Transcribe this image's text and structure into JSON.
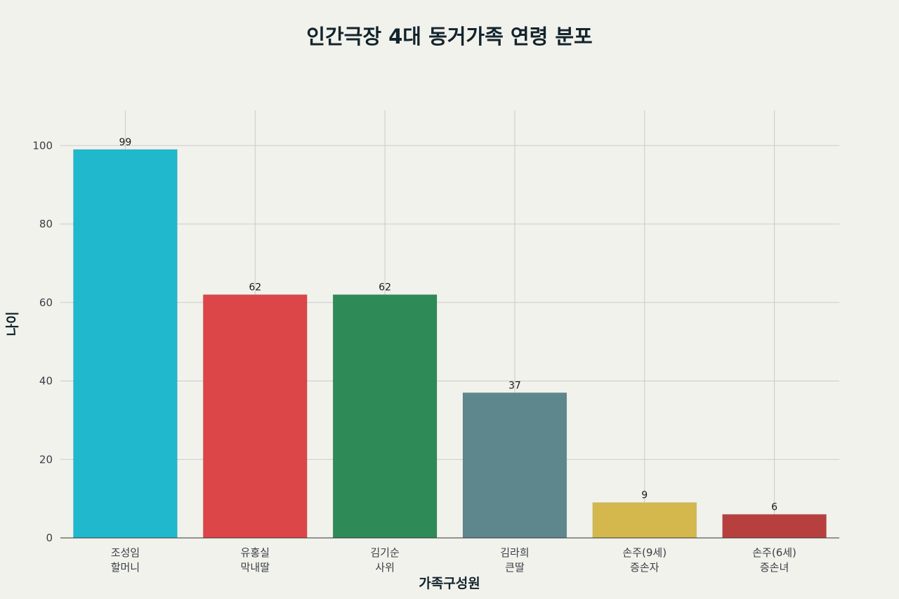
{
  "chart_data": {
    "type": "bar",
    "title": "인간극장 4대 동거가족 연령 분포",
    "xlabel": "가족구성원",
    "ylabel": "나이",
    "categories": [
      [
        "조성임",
        "할머니"
      ],
      [
        "유홍실",
        "막내딸"
      ],
      [
        "김기순",
        "사위"
      ],
      [
        "김라희",
        "큰딸"
      ],
      [
        "손주(9세)",
        "증손자"
      ],
      [
        "손주(6세)",
        "증손녀"
      ]
    ],
    "values": [
      99,
      62,
      62,
      37,
      9,
      6
    ],
    "colors": [
      "#20b8cd",
      "#dd4648",
      "#2e8b57",
      "#5e878d",
      "#d4b84e",
      "#b7403e"
    ],
    "yticks": [
      0,
      20,
      40,
      60,
      80,
      100
    ],
    "ylim": [
      0,
      109
    ],
    "grid": true,
    "legend": "none"
  }
}
